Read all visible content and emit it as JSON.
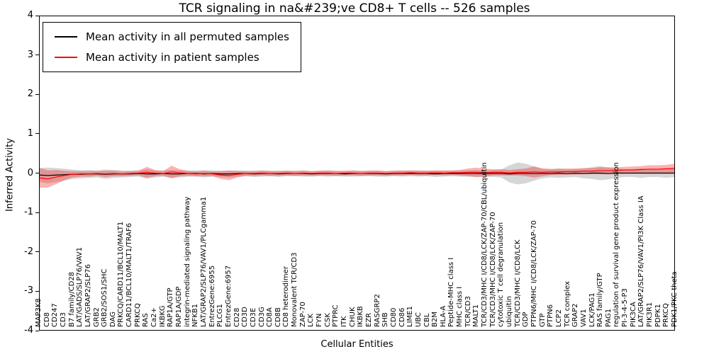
{
  "figure": {
    "title": "TCR signaling in na&#239;ve CD8+ T cells -- 526 samples",
    "xlabel": "Cellular Entities",
    "ylabel": "Inferred Activity"
  },
  "legend": {
    "items": [
      {
        "label": "Mean activity in all permuted samples",
        "color": "#000000"
      },
      {
        "label": "Mean activity in patient samples",
        "color": "#ff0000"
      }
    ]
  },
  "chart_data": {
    "type": "line",
    "title": "TCR signaling in na&#239;ve CD8+ T cells -- 526 samples",
    "xlabel": "Cellular Entities",
    "ylabel": "Inferred Activity",
    "ylim": [
      -4,
      4
    ],
    "yticks": [
      -4,
      -3,
      -2,
      -1,
      0,
      1,
      2,
      3,
      4
    ],
    "grid": false,
    "legend_position": "upper left",
    "categories": [
      "MAP3K8",
      "CD8",
      "CD247",
      "CD3",
      "B7 family/CD28",
      "LAT/GADS/SLP76/VAV1",
      "LAT/GRAP2/SLP76",
      "GRB2",
      "GRB2/SOS1/SHC",
      "DAG",
      "PRKCQ/CARD11/BCL10/MALT1",
      "CARD11/BCL10/MALT1/TRAF6",
      "PRKCQ",
      "RAS",
      "Ca2+",
      "IKBKG",
      "RAP1A/GTP",
      "RAP1A/GDP",
      "integrin-mediated signaling pathway",
      "NFKB1",
      "LAT/GRAP2/SLP76/VAV1/PLCgamma1",
      "EntrezGene:6955",
      "PLCG1",
      "EntrezGene:6957",
      "CD28",
      "CD3D",
      "CD3E",
      "CD3G",
      "CD8A",
      "CD8B",
      "CD8 heterodimer",
      "Monovalent TCR/CD3",
      "ZAP-70",
      "LCK",
      "FYN",
      "CSK",
      "PTPRC",
      "ITK",
      "CHUK",
      "IKBKB",
      "EZR",
      "RASGRP2",
      "SHB",
      "CD80",
      "CD86",
      "LIME1",
      "UBC",
      "CBL",
      "B2M",
      "HLA-A",
      "Peptide-MHC class I",
      "MHC class I",
      "TCR/CD3",
      "MALT1",
      "TCR/CD3/MHC I/CD8/LCK/ZAP-70/CBL/ubiquitin",
      "TCR/CD3/MHC I/CD8/LCK/ZAP-70",
      "cytotoxic T cell degranulation",
      "ubiquitin",
      "TCR/CD3/MHC I/CD8/LCK",
      "GDP",
      "PTPN6/MHC I/CD8/LCK/ZAP-70",
      "GTP",
      "PTPN6",
      "LCP2",
      "TCR complex",
      "GRAP2",
      "VAV1",
      "LCK/PAG1",
      "RAS family/GTP",
      "PAG1",
      "regulation of survival gene product expression",
      "PI-3-4-5-P3",
      "PIK3CA",
      "LAT/GRAP2/SLP76/VAV1/PI3K Class IA",
      "PIK3R1",
      "PDPK1",
      "PRKCQ",
      "PDK1/PKC theta"
    ],
    "series": [
      {
        "name": "Mean activity in all permuted samples",
        "color": "#000000",
        "band_color": "#999999",
        "band_opacity": 0.4,
        "values": [
          -0.05,
          -0.06,
          -0.05,
          -0.04,
          -0.03,
          -0.03,
          -0.02,
          -0.02,
          -0.03,
          -0.02,
          -0.02,
          -0.02,
          -0.01,
          -0.02,
          -0.02,
          -0.01,
          -0.02,
          -0.02,
          -0.01,
          -0.01,
          -0.02,
          -0.01,
          -0.02,
          -0.02,
          -0.01,
          -0.01,
          -0.02,
          -0.01,
          -0.01,
          -0.02,
          -0.01,
          -0.01,
          -0.01,
          -0.02,
          -0.01,
          -0.01,
          -0.01,
          -0.02,
          -0.01,
          -0.01,
          -0.01,
          -0.01,
          -0.02,
          -0.01,
          -0.01,
          -0.01,
          -0.01,
          -0.01,
          -0.02,
          -0.01,
          -0.01,
          -0.01,
          -0.01,
          -0.01,
          -0.01,
          -0.01,
          -0.01,
          -0.02,
          -0.01,
          -0.01,
          -0.01,
          -0.01,
          -0.01,
          0,
          -0.01,
          0,
          -0.01,
          0,
          0,
          -0.01,
          0,
          0,
          0,
          0,
          0,
          0,
          0,
          0
        ],
        "band_halfwidth": [
          0.18,
          0.2,
          0.18,
          0.15,
          0.12,
          0.1,
          0.1,
          0.09,
          0.12,
          0.1,
          0.09,
          0.08,
          0.08,
          0.12,
          0.09,
          0.08,
          0.1,
          0.09,
          0.08,
          0.08,
          0.09,
          0.08,
          0.08,
          0.09,
          0.08,
          0.07,
          0.08,
          0.08,
          0.07,
          0.08,
          0.07,
          0.07,
          0.08,
          0.07,
          0.07,
          0.08,
          0.07,
          0.07,
          0.08,
          0.07,
          0.07,
          0.08,
          0.07,
          0.07,
          0.08,
          0.07,
          0.08,
          0.07,
          0.08,
          0.08,
          0.07,
          0.08,
          0.08,
          0.09,
          0.08,
          0.09,
          0.1,
          0.22,
          0.28,
          0.25,
          0.18,
          0.12,
          0.1,
          0.12,
          0.1,
          0.1,
          0.12,
          0.15,
          0.18,
          0.15,
          0.12,
          0.1,
          0.1,
          0.12,
          0.1,
          0.1,
          0.12,
          0.1
        ]
      },
      {
        "name": "Mean activity in patient samples",
        "color": "#ff0000",
        "band_color": "#ff0000",
        "band_opacity": 0.3,
        "values": [
          -0.12,
          -0.15,
          -0.1,
          -0.06,
          -0.03,
          -0.02,
          -0.02,
          -0.01,
          -0.02,
          -0.01,
          -0.02,
          -0.01,
          0,
          0.02,
          0,
          -0.01,
          0.03,
          0.01,
          -0.01,
          -0.02,
          -0.01,
          -0.02,
          -0.05,
          -0.06,
          -0.03,
          -0.01,
          -0.01,
          0,
          -0.01,
          -0.01,
          0,
          -0.01,
          0,
          -0.01,
          0,
          0,
          -0.01,
          0,
          0,
          -0.01,
          0,
          0,
          -0.01,
          0,
          0,
          0.01,
          0,
          0,
          0.01,
          0,
          0.01,
          0.01,
          0.02,
          0.02,
          0.01,
          0.02,
          0.02,
          0.01,
          0.02,
          0.02,
          0.03,
          0.02,
          0.03,
          0.03,
          0.04,
          0.04,
          0.05,
          0.05,
          0.06,
          0.06,
          0.07,
          0.08,
          0.08,
          0.09,
          0.1,
          0.1,
          0.11,
          0.12
        ],
        "band_halfwidth": [
          0.25,
          0.22,
          0.18,
          0.12,
          0.08,
          0.07,
          0.07,
          0.06,
          0.08,
          0.07,
          0.06,
          0.06,
          0.06,
          0.14,
          0.08,
          0.06,
          0.16,
          0.09,
          0.06,
          0.06,
          0.07,
          0.06,
          0.1,
          0.12,
          0.08,
          0.06,
          0.06,
          0.06,
          0.06,
          0.06,
          0.06,
          0.06,
          0.06,
          0.06,
          0.06,
          0.06,
          0.06,
          0.06,
          0.06,
          0.06,
          0.06,
          0.06,
          0.06,
          0.06,
          0.06,
          0.06,
          0.06,
          0.06,
          0.06,
          0.06,
          0.06,
          0.07,
          0.1,
          0.12,
          0.1,
          0.08,
          0.08,
          0.07,
          0.08,
          0.1,
          0.14,
          0.1,
          0.08,
          0.08,
          0.08,
          0.08,
          0.08,
          0.08,
          0.09,
          0.09,
          0.08,
          0.08,
          0.09,
          0.09,
          0.1,
          0.1,
          0.1,
          0.12
        ]
      }
    ]
  }
}
